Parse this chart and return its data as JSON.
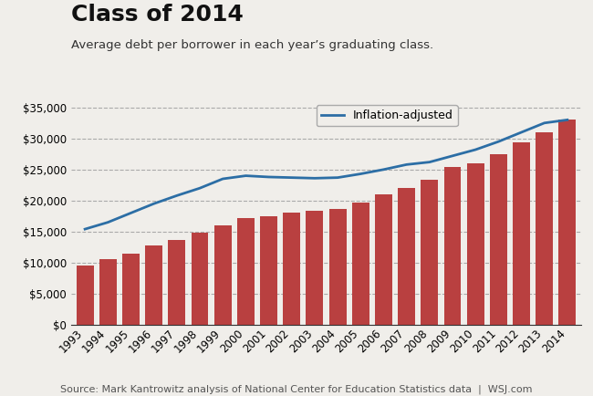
{
  "title": "Class of 2014",
  "subtitle": "Average debt per borrower in each year’s graduating class.",
  "source": "Source: Mark Kantrowitz analysis of National Center for Education Statistics data  |  WSJ.com",
  "years": [
    1993,
    1994,
    1995,
    1996,
    1997,
    1998,
    1999,
    2000,
    2001,
    2002,
    2003,
    2004,
    2005,
    2006,
    2007,
    2008,
    2009,
    2010,
    2011,
    2012,
    2013,
    2014
  ],
  "bar_values": [
    9500,
    10500,
    11500,
    12800,
    13700,
    14800,
    16000,
    17200,
    17500,
    18000,
    18300,
    18600,
    19700,
    21000,
    22000,
    23300,
    25400,
    26000,
    27500,
    29400,
    31000,
    33000
  ],
  "line_values": [
    15400,
    16500,
    18000,
    19500,
    20800,
    22000,
    23500,
    24000,
    23800,
    23700,
    23600,
    23700,
    24300,
    25000,
    25800,
    26200,
    27200,
    28200,
    29500,
    31000,
    32500,
    33000
  ],
  "bar_color": "#b94040",
  "line_color": "#2c6ea5",
  "background_color": "#f0eeea",
  "ylim": [
    0,
    37000
  ],
  "yticks": [
    0,
    5000,
    10000,
    15000,
    20000,
    25000,
    30000,
    35000
  ],
  "legend_label": "Inflation-adjusted",
  "title_fontsize": 18,
  "subtitle_fontsize": 9.5,
  "source_fontsize": 8,
  "tick_fontsize": 8.5
}
